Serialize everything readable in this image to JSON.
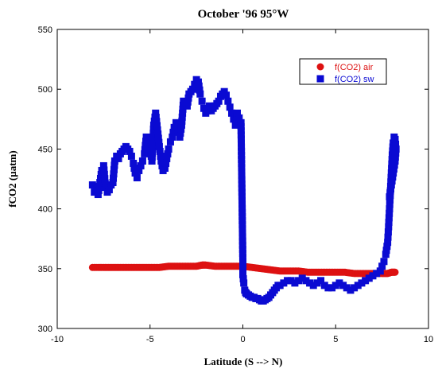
{
  "chart_data": {
    "type": "scatter",
    "title": "October '96 95°W",
    "xlabel": "Latitude (S --> N)",
    "ylabel": "fCO2 (µatm)",
    "xlim": [
      -10,
      10
    ],
    "ylim": [
      300,
      550
    ],
    "xticks": [
      -10,
      -5,
      0,
      5,
      10
    ],
    "yticks": [
      300,
      350,
      400,
      450,
      500,
      550
    ],
    "grid": false,
    "legend_position": "top-right",
    "series": [
      {
        "name": "f(CO2) air",
        "marker": "circle",
        "color": "#dd1111",
        "x": [
          -8.1,
          -7.5,
          -7.0,
          -6.5,
          -6.0,
          -5.5,
          -5.0,
          -4.5,
          -4.0,
          -3.5,
          -3.0,
          -2.5,
          -2.2,
          -2.0,
          -1.5,
          -1.0,
          -0.5,
          0.0,
          0.5,
          1.0,
          1.5,
          2.0,
          2.5,
          3.0,
          3.5,
          4.0,
          4.5,
          5.0,
          5.5,
          6.0,
          6.5,
          7.0,
          7.5,
          7.8,
          8.0,
          8.2
        ],
        "y": [
          351,
          351,
          351,
          351,
          351,
          351,
          351,
          351,
          352,
          352,
          352,
          352,
          353,
          353,
          352,
          352,
          352,
          352,
          351,
          350,
          349,
          348,
          348,
          348,
          347,
          347,
          347,
          347,
          347,
          346,
          346,
          346,
          346,
          346,
          347,
          347
        ]
      },
      {
        "name": "f(CO2) sw",
        "marker": "square",
        "color": "#0a0ad2",
        "x": [
          -8.1,
          -8.0,
          -7.9,
          -7.8,
          -7.7,
          -7.6,
          -7.5,
          -7.4,
          -7.3,
          -7.2,
          -7.1,
          -7.0,
          -6.9,
          -6.8,
          -6.7,
          -6.6,
          -6.5,
          -6.4,
          -6.3,
          -6.2,
          -6.1,
          -6.0,
          -5.9,
          -5.8,
          -5.7,
          -5.6,
          -5.5,
          -5.4,
          -5.3,
          -5.2,
          -5.1,
          -5.0,
          -4.9,
          -4.8,
          -4.7,
          -4.6,
          -4.5,
          -4.4,
          -4.3,
          -4.2,
          -4.1,
          -4.0,
          -3.9,
          -3.8,
          -3.7,
          -3.6,
          -3.5,
          -3.4,
          -3.3,
          -3.2,
          -3.1,
          -3.0,
          -2.9,
          -2.8,
          -2.7,
          -2.6,
          -2.5,
          -2.4,
          -2.3,
          -2.2,
          -2.1,
          -2.0,
          -1.9,
          -1.8,
          -1.7,
          -1.6,
          -1.5,
          -1.4,
          -1.3,
          -1.2,
          -1.1,
          -1.0,
          -0.9,
          -0.8,
          -0.7,
          -0.6,
          -0.5,
          -0.4,
          -0.3,
          -0.2,
          -0.1,
          0.0,
          0.0,
          0.05,
          0.1,
          0.15,
          0.2,
          0.3,
          0.4,
          0.5,
          0.6,
          0.7,
          0.8,
          0.9,
          1.0,
          1.1,
          1.2,
          1.3,
          1.4,
          1.5,
          1.6,
          1.7,
          1.8,
          1.9,
          2.0,
          2.2,
          2.4,
          2.6,
          2.8,
          3.0,
          3.2,
          3.4,
          3.6,
          3.8,
          4.0,
          4.2,
          4.4,
          4.6,
          4.8,
          5.0,
          5.2,
          5.4,
          5.6,
          5.8,
          6.0,
          6.2,
          6.4,
          6.6,
          6.8,
          7.0,
          7.2,
          7.4,
          7.5,
          7.6,
          7.7,
          7.8,
          7.85,
          7.9,
          7.95,
          8.0,
          8.05,
          8.1,
          8.15,
          8.2,
          8.25,
          8.2,
          8.1,
          8.0,
          7.9
        ],
        "y": [
          420,
          414,
          418,
          412,
          422,
          432,
          436,
          418,
          414,
          416,
          420,
          422,
          440,
          444,
          442,
          446,
          448,
          450,
          452,
          450,
          448,
          444,
          438,
          430,
          426,
          432,
          436,
          440,
          446,
          460,
          456,
          452,
          440,
          470,
          480,
          466,
          452,
          440,
          432,
          434,
          442,
          450,
          456,
          460,
          468,
          472,
          466,
          460,
          470,
          490,
          488,
          486,
          496,
          498,
          500,
          504,
          508,
          506,
          496,
          490,
          484,
          480,
          482,
          486,
          482,
          484,
          486,
          488,
          490,
          494,
          496,
          498,
          495,
          490,
          485,
          480,
          475,
          470,
          480,
          476,
          472,
          356,
          345,
          338,
          332,
          330,
          329,
          328,
          327,
          326,
          326,
          325,
          325,
          324,
          323,
          323,
          324,
          325,
          326,
          328,
          330,
          332,
          334,
          336,
          336,
          338,
          340,
          340,
          338,
          340,
          342,
          340,
          338,
          336,
          338,
          340,
          336,
          334,
          334,
          336,
          338,
          336,
          334,
          332,
          334,
          336,
          338,
          340,
          342,
          344,
          346,
          348,
          352,
          356,
          362,
          372,
          385,
          400,
          415,
          430,
          445,
          455,
          460,
          458,
          450,
          440,
          430,
          420,
          410
        ]
      }
    ]
  }
}
